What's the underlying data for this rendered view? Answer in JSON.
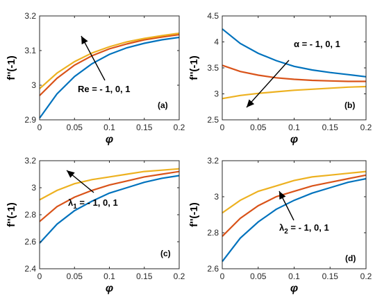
{
  "chart_data": [
    {
      "type": "line",
      "panel_label": "(a)",
      "xlabel": "φ",
      "ylabel": "f''(-1)",
      "xlim": [
        0,
        0.2
      ],
      "ylim": [
        2.9,
        3.2
      ],
      "xticks": [
        "0",
        "0.05",
        "0.1",
        "0.15",
        "0.2"
      ],
      "yticks": [
        "2.9",
        "3",
        "3.1",
        "3.2"
      ],
      "annotation": "Re = - 1, 0, 1",
      "x": [
        0,
        0.025,
        0.05,
        0.075,
        0.1,
        0.125,
        0.15,
        0.175,
        0.2
      ],
      "series": [
        {
          "color": "#0072BD",
          "values": [
            2.905,
            2.975,
            3.025,
            3.062,
            3.089,
            3.108,
            3.121,
            3.131,
            3.138
          ]
        },
        {
          "color": "#D95319",
          "values": [
            2.97,
            3.02,
            3.058,
            3.085,
            3.105,
            3.119,
            3.131,
            3.139,
            3.146
          ]
        },
        {
          "color": "#EDB120",
          "values": [
            2.99,
            3.035,
            3.068,
            3.093,
            3.111,
            3.125,
            3.135,
            3.143,
            3.15
          ]
        }
      ]
    },
    {
      "type": "line",
      "panel_label": "(b)",
      "xlabel": "φ",
      "ylabel": "f''(-1)",
      "xlim": [
        0,
        0.2
      ],
      "ylim": [
        2.5,
        4.5
      ],
      "xticks": [
        "0",
        "0.05",
        "0.1",
        "0.15",
        "0.2"
      ],
      "yticks": [
        "2.5",
        "3",
        "3.5",
        "4",
        "4.5"
      ],
      "annotation": "α = - 1, 0, 1",
      "x": [
        0,
        0.025,
        0.05,
        0.075,
        0.1,
        0.125,
        0.15,
        0.175,
        0.2
      ],
      "series": [
        {
          "color": "#0072BD",
          "values": [
            4.25,
            3.97,
            3.78,
            3.64,
            3.53,
            3.46,
            3.41,
            3.37,
            3.33
          ]
        },
        {
          "color": "#D95319",
          "values": [
            3.55,
            3.43,
            3.36,
            3.31,
            3.28,
            3.26,
            3.25,
            3.24,
            3.24
          ]
        },
        {
          "color": "#EDB120",
          "values": [
            2.91,
            2.97,
            3.01,
            3.04,
            3.07,
            3.09,
            3.11,
            3.13,
            3.14
          ]
        }
      ]
    },
    {
      "type": "line",
      "panel_label": "(c)",
      "xlabel": "φ",
      "ylabel": "f''(-1)",
      "xlim": [
        0,
        0.2
      ],
      "ylim": [
        2.4,
        3.2
      ],
      "xticks": [
        "0",
        "0.05",
        "0.1",
        "0.15",
        "0.2"
      ],
      "yticks": [
        "2.4",
        "2.6",
        "2.8",
        "3",
        "3.2"
      ],
      "annotation": "λ₁ = - 1, 0, 1",
      "x": [
        0,
        0.025,
        0.05,
        0.075,
        0.1,
        0.125,
        0.15,
        0.175,
        0.2
      ],
      "series": [
        {
          "color": "#0072BD",
          "values": [
            2.59,
            2.73,
            2.83,
            2.9,
            2.96,
            3.0,
            3.04,
            3.07,
            3.09
          ]
        },
        {
          "color": "#D95319",
          "values": [
            2.75,
            2.86,
            2.93,
            2.98,
            3.02,
            3.05,
            3.08,
            3.1,
            3.12
          ]
        },
        {
          "color": "#EDB120",
          "values": [
            2.91,
            2.98,
            3.03,
            3.06,
            3.08,
            3.1,
            3.12,
            3.13,
            3.14
          ]
        }
      ]
    },
    {
      "type": "line",
      "panel_label": "(d)",
      "xlabel": "φ",
      "ylabel": "f''(-1)",
      "xlim": [
        0,
        0.2
      ],
      "ylim": [
        2.6,
        3.2
      ],
      "xticks": [
        "0",
        "0.05",
        "0.1",
        "0.15",
        "0.2"
      ],
      "yticks": [
        "2.6",
        "2.8",
        "3",
        "3.2"
      ],
      "annotation": "λ₂ = - 1, 0, 1",
      "x": [
        0,
        0.025,
        0.05,
        0.075,
        0.1,
        0.125,
        0.15,
        0.175,
        0.2
      ],
      "series": [
        {
          "color": "#0072BD",
          "values": [
            2.64,
            2.77,
            2.86,
            2.93,
            2.98,
            3.02,
            3.05,
            3.08,
            3.1
          ]
        },
        {
          "color": "#D95319",
          "values": [
            2.78,
            2.88,
            2.95,
            3.0,
            3.03,
            3.06,
            3.08,
            3.1,
            3.12
          ]
        },
        {
          "color": "#EDB120",
          "values": [
            2.91,
            2.98,
            3.03,
            3.06,
            3.09,
            3.11,
            3.12,
            3.13,
            3.14
          ]
        }
      ]
    }
  ]
}
